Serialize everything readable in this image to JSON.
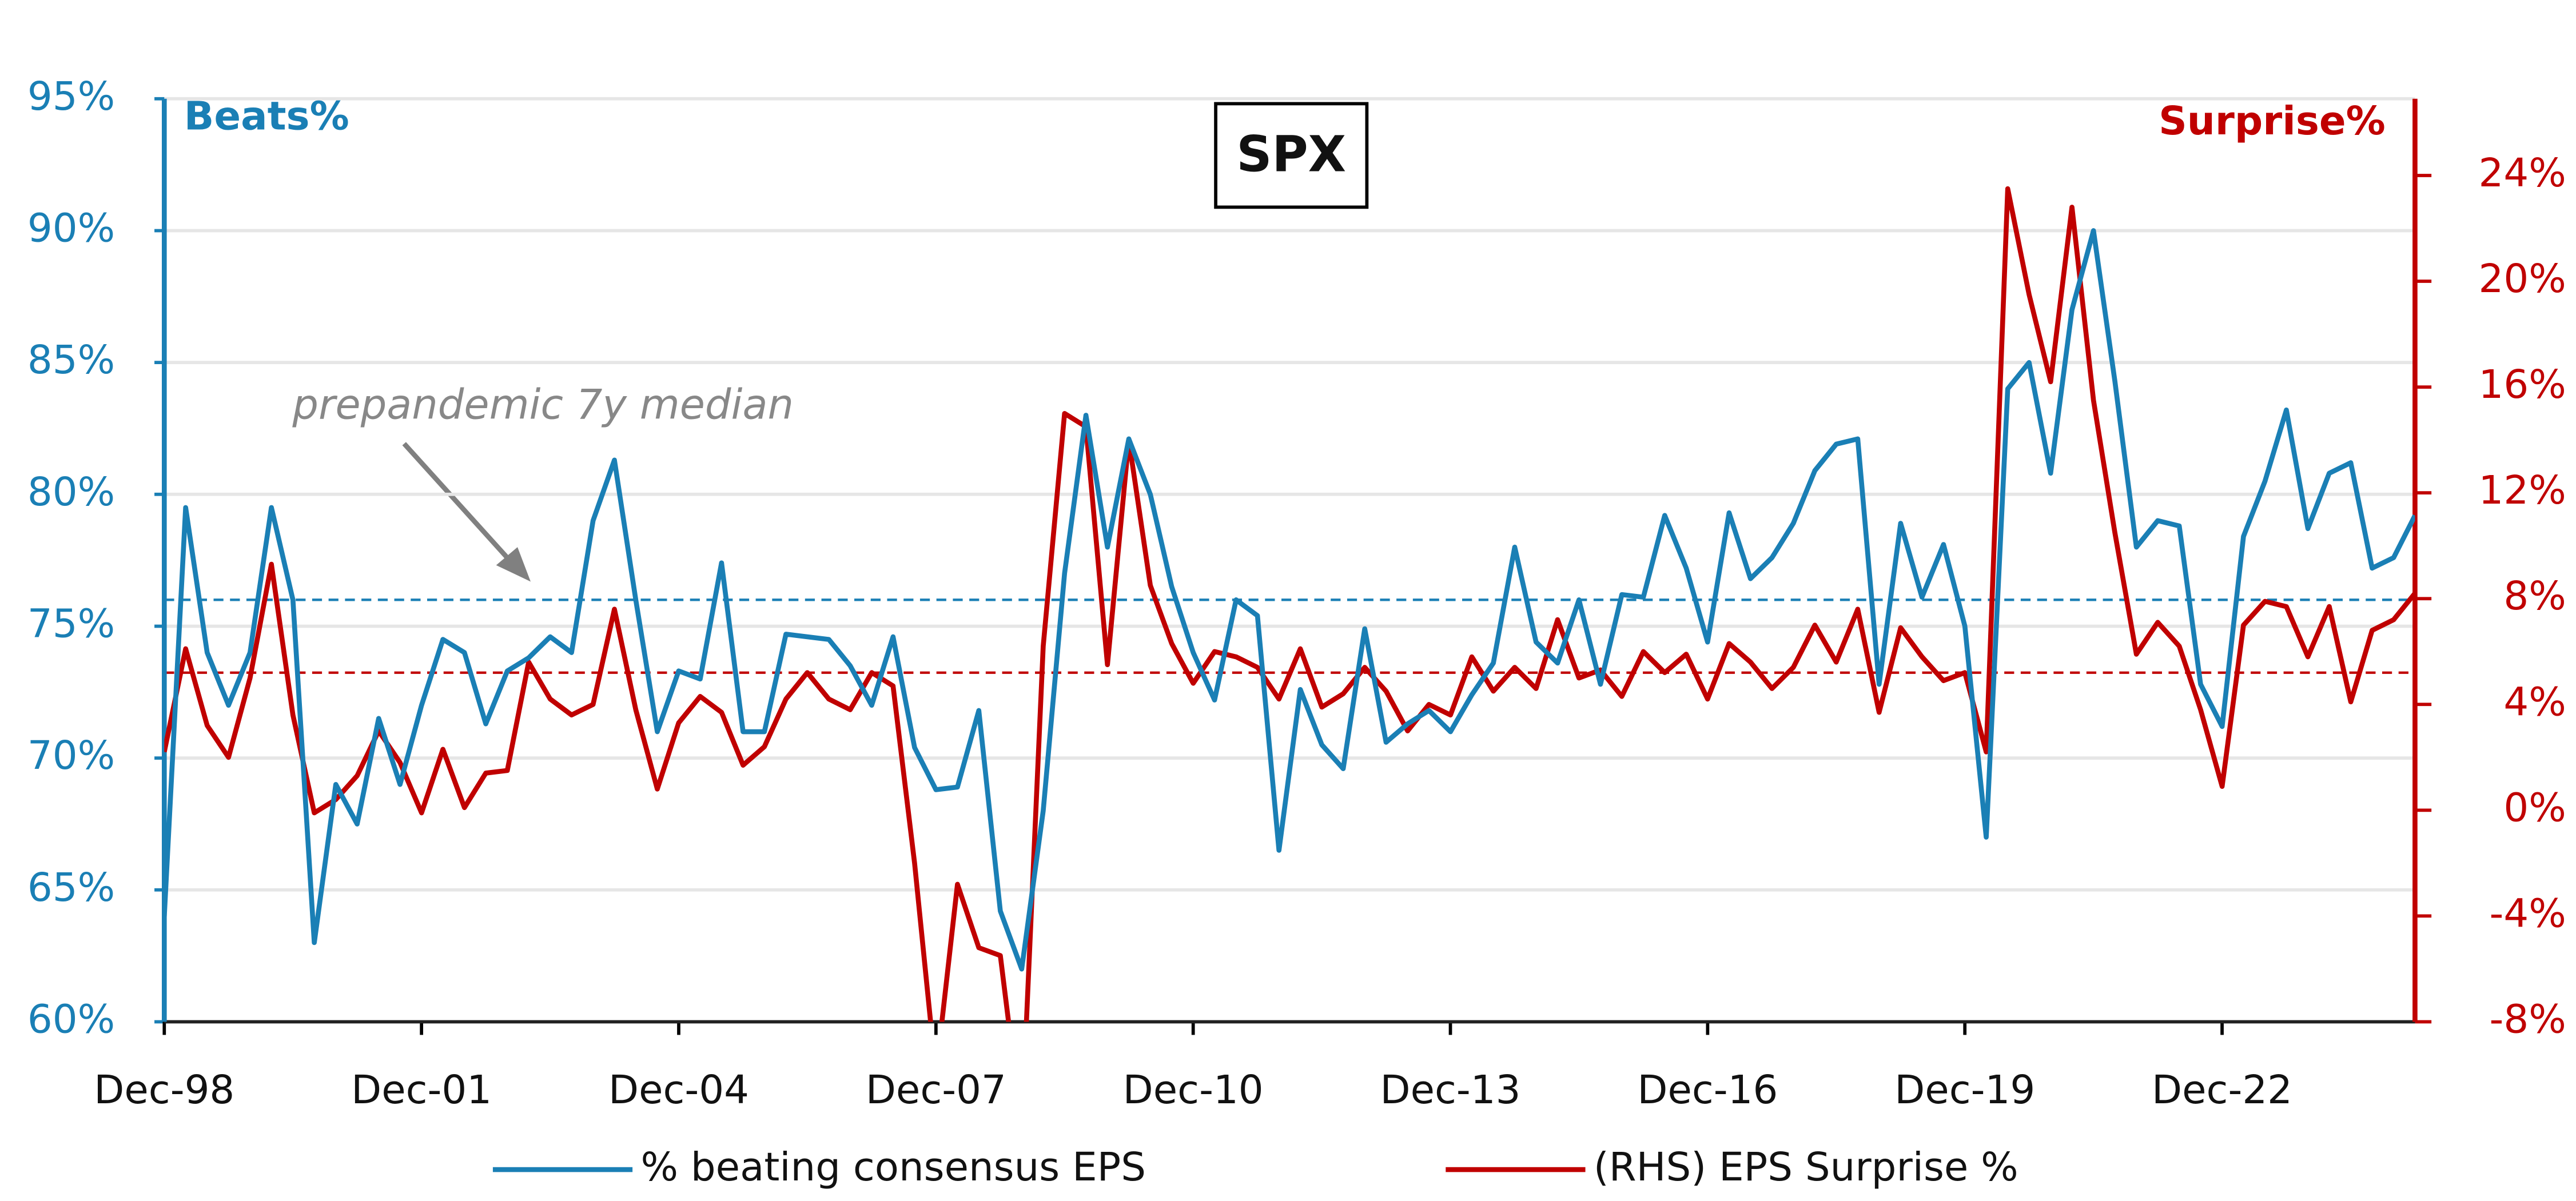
{
  "chart_data": {
    "type": "line",
    "title": "SPX",
    "y_label": "Beats%",
    "y2_label": "Surprise%",
    "annotation": "prepandemic 7y median",
    "categories": [
      "Dec-98",
      null,
      null,
      null,
      null,
      null,
      null,
      null,
      null,
      null,
      null,
      null,
      "Dec-01",
      null,
      null,
      null,
      null,
      null,
      null,
      null,
      null,
      null,
      null,
      null,
      "Dec-04",
      null,
      null,
      null,
      null,
      null,
      null,
      null,
      null,
      null,
      null,
      null,
      "Dec-07",
      null,
      null,
      null,
      null,
      null,
      null,
      null,
      null,
      null,
      null,
      null,
      "Dec-10",
      null,
      null,
      null,
      null,
      null,
      null,
      null,
      null,
      null,
      null,
      null,
      "Dec-13",
      null,
      null,
      null,
      null,
      null,
      null,
      null,
      null,
      null,
      null,
      null,
      "Dec-16",
      null,
      null,
      null,
      null,
      null,
      null,
      null,
      null,
      null,
      null,
      null,
      "Dec-19",
      null,
      null,
      null,
      null,
      null,
      null,
      null,
      null,
      null,
      null,
      null,
      "Dec-22",
      null,
      null,
      null,
      null,
      null,
      null,
      null,
      null,
      null
    ],
    "series": [
      {
        "name": "% beating consensus EPS",
        "color": "#1a7fb5",
        "values": [
          64,
          79.5,
          74,
          72,
          74,
          79.5,
          76,
          63,
          69,
          67.5,
          71.5,
          69,
          72,
          74.5,
          74,
          71.3,
          73.3,
          73.8,
          74.6,
          74,
          79,
          81.3,
          76,
          71,
          73.3,
          73,
          77.4,
          71,
          71,
          74.7,
          74.6,
          74.5,
          73.5,
          72,
          74.6,
          70.4,
          68.8,
          68.9,
          71.8,
          64.2,
          62,
          68,
          77,
          83,
          78,
          82.1,
          80,
          76.5,
          74,
          72.2,
          76,
          75.4,
          66.5,
          72.6,
          70.5,
          69.6,
          74.9,
          70.6,
          71.3,
          71.8,
          71,
          72.4,
          73.6,
          78,
          74.4,
          73.6,
          76,
          72.8,
          76.2,
          76.1,
          79.2,
          77.2,
          74.4,
          79.3,
          76.8,
          77.6,
          78.9,
          80.9,
          81.9,
          82.1,
          72.8,
          78.9,
          76.1,
          78.1,
          75,
          67,
          84,
          85,
          80.8,
          87,
          90,
          84.3,
          78,
          79,
          78.8,
          72.8,
          71.2,
          78.4,
          80.5,
          83.2,
          78.7,
          80.8,
          81.2,
          77.2,
          77.6,
          79.2
        ]
      },
      {
        "name": "(RHS) EPS Surprise %",
        "color": "#c00000",
        "axis": "y2",
        "values": [
          2.2,
          6.1,
          3.2,
          2,
          5,
          9.3,
          3.6,
          -0.1,
          0.4,
          1.3,
          3,
          1.8,
          -0.1,
          2.3,
          0.1,
          1.4,
          1.5,
          5.6,
          4.2,
          3.6,
          4,
          7.6,
          3.8,
          0.8,
          3.3,
          4.3,
          3.7,
          1.7,
          2.4,
          4.2,
          5.2,
          4.2,
          3.8,
          5.2,
          4.7,
          -2,
          -10,
          -2.8,
          -5.2,
          -5.5,
          -12,
          6.2,
          15,
          14.5,
          5.5,
          14,
          8.5,
          6.3,
          4.8,
          6,
          5.8,
          5.4,
          4.2,
          6.1,
          3.9,
          4.4,
          5.4,
          4.5,
          3,
          4,
          3.6,
          5.8,
          4.5,
          5.4,
          4.6,
          7.2,
          5,
          5.3,
          4.3,
          6,
          5.2,
          5.9,
          4.2,
          6.3,
          5.6,
          4.6,
          5.4,
          7,
          5.6,
          7.6,
          3.7,
          6.9,
          5.8,
          4.9,
          5.2,
          2.2,
          23.5,
          19.5,
          16.2,
          22.8,
          15.5,
          10.5,
          5.9,
          7.1,
          6.2,
          3.8,
          0.9,
          7,
          7.9,
          7.7,
          5.8,
          7.7,
          4.1,
          6.8,
          7.2,
          8.2
        ]
      }
    ],
    "hlines": [
      {
        "value": 76,
        "color": "#1a7fb5"
      },
      {
        "value": 5.2,
        "axis": "y2",
        "color": "#c00000"
      }
    ],
    "ylim": [
      60,
      95
    ],
    "yticks": [
      {
        "value": 60,
        "label": "60%"
      },
      {
        "value": 65,
        "label": "65%"
      },
      {
        "value": 70,
        "label": "70%"
      },
      {
        "value": 75,
        "label": "75%"
      },
      {
        "value": 80,
        "label": "80%"
      },
      {
        "value": 85,
        "label": "85%"
      },
      {
        "value": 90,
        "label": "90%"
      },
      {
        "value": 95,
        "label": "95%"
      }
    ],
    "y2lim": [
      -8,
      26.9
    ],
    "y2ticks": [
      {
        "value": -8,
        "label": "-8%"
      },
      {
        "value": -4,
        "label": "-4%"
      },
      {
        "value": 0,
        "label": "0%"
      },
      {
        "value": 4,
        "label": "4%"
      },
      {
        "value": 8,
        "label": "8%"
      },
      {
        "value": 12,
        "label": "12%"
      },
      {
        "value": 16,
        "label": "16%"
      },
      {
        "value": 20,
        "label": "20%"
      },
      {
        "value": 24,
        "label": "24%"
      }
    ],
    "grid": true,
    "legend": "bottom"
  }
}
